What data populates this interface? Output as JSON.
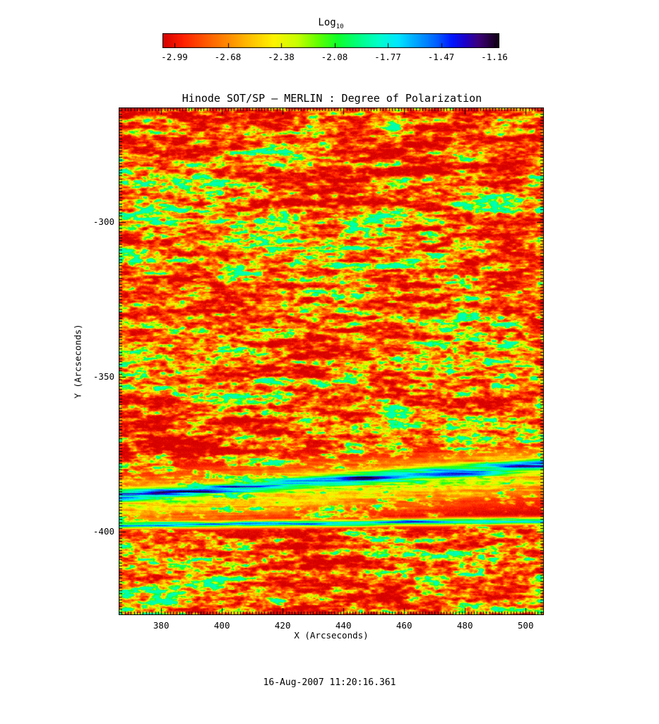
{
  "page": {
    "background": "#ffffff",
    "text_color": "#000000"
  },
  "colorbar": {
    "title_main": "Log",
    "title_sub": "10"
  },
  "chart_data": {
    "type": "heatmap",
    "title": "Hinode SOT/SP — MERLIN : Degree of Polarization",
    "xlabel": "X (Arcseconds)",
    "ylabel": "Y (Arcseconds)",
    "xlim": [
      366,
      506
    ],
    "ylim": [
      -427,
      -263
    ],
    "xticks": [
      380,
      400,
      420,
      440,
      460,
      480,
      500
    ],
    "yticks": [
      -300,
      -350,
      -400
    ],
    "x_minor_step": 1,
    "y_minor_step": 1,
    "grid": false,
    "colorbar": {
      "label": "Log10",
      "position": "top",
      "tick_labels": [
        "-2.99",
        "-2.68",
        "-2.38",
        "-2.08",
        "-1.77",
        "-1.47",
        "-1.16"
      ],
      "tick_values": [
        -2.99,
        -2.68,
        -2.38,
        -2.08,
        -1.77,
        -1.47,
        -1.16
      ],
      "range": [
        -2.99,
        -1.16
      ]
    },
    "colormap_stops": [
      {
        "pos": 0.0,
        "color": "#d40000"
      },
      {
        "pos": 0.06,
        "color": "#ff2000"
      },
      {
        "pos": 0.13,
        "color": "#ff5a00"
      },
      {
        "pos": 0.2,
        "color": "#ff9000"
      },
      {
        "pos": 0.27,
        "color": "#ffc800"
      },
      {
        "pos": 0.33,
        "color": "#fdf300"
      },
      {
        "pos": 0.4,
        "color": "#c8ff00"
      },
      {
        "pos": 0.46,
        "color": "#64ff00"
      },
      {
        "pos": 0.52,
        "color": "#0eff2a"
      },
      {
        "pos": 0.58,
        "color": "#00ff7e"
      },
      {
        "pos": 0.64,
        "color": "#00ffc8"
      },
      {
        "pos": 0.7,
        "color": "#00e6ff"
      },
      {
        "pos": 0.75,
        "color": "#00a8ff"
      },
      {
        "pos": 0.81,
        "color": "#0064ff"
      },
      {
        "pos": 0.86,
        "color": "#0016ff"
      },
      {
        "pos": 0.9,
        "color": "#1c00c8"
      },
      {
        "pos": 0.94,
        "color": "#3c0078"
      },
      {
        "pos": 1.0,
        "color": "#0f0011"
      }
    ],
    "description": "Solar map: quiet-sun background is red/orange (~-2.9 to -2.6) with horizontally elongated green speckle (~-2.3 to -2.0); a strong horizontally elongated magnetic band near Y = -383 to -397 shows cyan, blue and near-black values (-1.6 to -1.16).",
    "features": {
      "band1": {
        "y_center_frac": 0.765,
        "slope": -0.06,
        "core_width_frac": 0.016,
        "halo_width_frac": 0.045
      },
      "band2": {
        "y_center_frac": 0.822,
        "slope": -0.008,
        "core_width_frac": 0.007
      }
    },
    "texture": {
      "seed": 1337,
      "large_scale": {
        "sx": 55,
        "sy": 9,
        "octaves": 4
      },
      "fine_scale": {
        "sx": 9,
        "sy": 4.5,
        "octaves": 3
      },
      "normalize": [
        0.33,
        0.32
      ],
      "gamma": 2.2,
      "gain": 0.62
    }
  },
  "footer": {
    "timestamp": "16-Aug-2007 11:20:16.361"
  }
}
